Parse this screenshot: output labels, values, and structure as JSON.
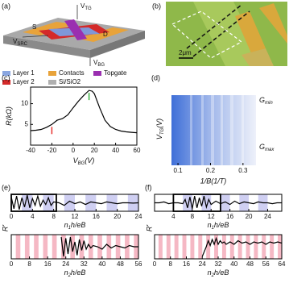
{
  "figure": {
    "a": {
      "label": "(a)",
      "source": "S",
      "drain": "D",
      "vtg": {
        "main": "V",
        "sub": "TG"
      },
      "vbg": {
        "main": "V",
        "sub": "BG"
      },
      "vsrc": {
        "main": "V",
        "sub": "SRC"
      },
      "legend": [
        "Layer 1",
        "Layer 2",
        "Contacts",
        "Si/SiO2",
        "Topgate"
      ]
    },
    "b": {
      "label": "(b)",
      "scale": "2μm"
    }
  },
  "chart_data": [
    {
      "type": "line",
      "label": "(c)",
      "ylabel": {
        "main": "R",
        "tail": "(kΩ)"
      },
      "xlabel": {
        "main": "V",
        "sub": "BG",
        "tail": "(V)"
      },
      "x": [
        -40,
        -35,
        -30,
        -25,
        -20,
        -15,
        -10,
        -5,
        0,
        5,
        10,
        15,
        18,
        20,
        25,
        30,
        35,
        40,
        45,
        50,
        55,
        60
      ],
      "values": [
        3.5,
        3.6,
        3.8,
        4.3,
        5.0,
        6.0,
        6.4,
        7.3,
        9.0,
        10.6,
        12.0,
        13.2,
        13.0,
        12.4,
        9.0,
        6.0,
        4.5,
        3.8,
        3.4,
        3.2,
        3.1,
        3.0
      ],
      "color": "#000000",
      "markers": [
        {
          "x": -20,
          "color": "#e8322e"
        },
        {
          "x": 15,
          "color": "#3cb043"
        }
      ],
      "xlim": [
        -40,
        60
      ],
      "xticks": [
        -40,
        -20,
        0,
        20,
        40,
        60
      ],
      "ylim": [
        0,
        14
      ],
      "yticks": [
        5,
        10
      ]
    },
    {
      "type": "image",
      "label": "(d)",
      "ylabel": {
        "main": "V",
        "sub": "TG",
        "tail": "(V)"
      },
      "xlabel": "1/B(1/T)",
      "colorbar": [
        {
          "main": "G",
          "sub": "min"
        },
        {
          "main": "G",
          "sub": "max"
        }
      ],
      "xlim": [
        0.08,
        0.34
      ],
      "xticks": [
        0.1,
        0.2,
        0.3
      ]
    },
    {
      "type": "line",
      "label": "(e)",
      "ylabel": "R'",
      "xlabel": {
        "main": "n",
        "sub": "1",
        "tail": "h/eB"
      },
      "x": [
        0,
        0.5,
        1,
        1.5,
        2,
        2.5,
        3,
        3.5,
        4,
        4.5,
        5,
        5.5,
        6,
        6.5,
        7,
        7.5,
        8,
        9,
        10,
        11,
        12,
        13,
        14,
        15,
        16,
        17,
        18,
        19,
        20,
        21,
        22,
        23,
        24
      ],
      "values": [
        0.85,
        0.15,
        0.9,
        0.1,
        0.8,
        0.25,
        0.95,
        0.2,
        0.75,
        0.35,
        0.9,
        0.3,
        0.65,
        0.4,
        0.8,
        0.35,
        0.55,
        0.5,
        0.35,
        0.6,
        0.45,
        0.55,
        0.4,
        0.55,
        0.5,
        0.45,
        0.55,
        0.5,
        0.45,
        0.5,
        0.5,
        0.48,
        0.5
      ],
      "color": "#000000",
      "stripe_color": "#cfcff2",
      "highlight": [
        0,
        8.5
      ],
      "xlim": [
        0,
        24
      ],
      "xticks": [
        0,
        4,
        8,
        12,
        16,
        20,
        24
      ],
      "ylim": [
        0,
        1
      ]
    },
    {
      "type": "line",
      "xlabel": {
        "main": "n",
        "sub": "2",
        "tail": "h/eB"
      },
      "x": [
        22,
        23,
        24,
        25,
        26,
        27,
        28,
        29,
        30,
        31,
        32,
        33,
        34,
        35,
        36,
        38,
        40,
        42,
        44,
        46,
        48,
        50,
        52,
        54,
        56
      ],
      "values": [
        0.9,
        0.1,
        0.85,
        0.2,
        0.9,
        0.3,
        0.7,
        0.15,
        0.8,
        0.35,
        0.75,
        0.4,
        0.6,
        0.45,
        0.55,
        0.5,
        0.4,
        0.6,
        0.45,
        0.55,
        0.5,
        0.45,
        0.55,
        0.5,
        0.5
      ],
      "color": "#000000",
      "stripe_color": "#f5b8c4",
      "xlim": [
        0,
        56
      ],
      "xticks": [
        0,
        8,
        16,
        24,
        32,
        40,
        48,
        56
      ],
      "ylim": [
        0,
        1
      ]
    },
    {
      "type": "line",
      "label": "(f)",
      "ylabel": "R'",
      "xlabel": {
        "main": "n",
        "sub": "1",
        "tail": "h/eB"
      },
      "x": [
        0,
        1,
        2,
        3,
        4,
        5,
        6,
        6.5,
        7,
        7.5,
        8,
        8.5,
        9,
        9.5,
        10,
        10.5,
        11,
        11.5,
        12,
        13,
        14,
        15,
        16,
        17,
        18,
        19,
        20,
        21,
        22,
        23,
        24,
        25,
        26,
        27
      ],
      "values": [
        0.5,
        0.5,
        0.55,
        0.45,
        0.5,
        0.5,
        0.45,
        0.7,
        0.2,
        0.85,
        0.15,
        0.9,
        0.2,
        0.8,
        0.3,
        0.9,
        0.25,
        0.7,
        0.4,
        0.6,
        0.45,
        0.55,
        0.4,
        0.6,
        0.45,
        0.55,
        0.5,
        0.45,
        0.55,
        0.5,
        0.5,
        0.45,
        0.5,
        0.5
      ],
      "color": "#000000",
      "stripe_color": "#cfcff2",
      "highlight": [
        4,
        14
      ],
      "xlim": [
        0,
        27
      ],
      "xticks": [
        4,
        8,
        12,
        16,
        20,
        24
      ],
      "ylim": [
        0,
        1
      ]
    },
    {
      "type": "line",
      "xlabel": {
        "main": "n",
        "sub": "2",
        "tail": "h/eB"
      },
      "x": [
        24,
        26,
        27,
        28,
        29,
        30,
        31,
        32,
        33,
        34,
        35,
        36,
        38,
        40,
        42,
        44,
        46,
        48,
        50,
        52,
        54,
        56,
        58,
        60,
        62,
        64
      ],
      "values": [
        0.1,
        0.5,
        0.75,
        0.55,
        0.8,
        0.6,
        0.85,
        0.6,
        0.75,
        0.65,
        0.7,
        0.6,
        0.7,
        0.6,
        0.75,
        0.65,
        0.7,
        0.6,
        0.7,
        0.65,
        0.7,
        0.6,
        0.7,
        0.65,
        0.7,
        0.65
      ],
      "color": "#000000",
      "stripe_color": "#f5b8c4",
      "xlim": [
        0,
        64
      ],
      "xticks": [
        0,
        8,
        16,
        24,
        32,
        40,
        48,
        56,
        64
      ],
      "ylim": [
        0,
        1
      ]
    }
  ]
}
